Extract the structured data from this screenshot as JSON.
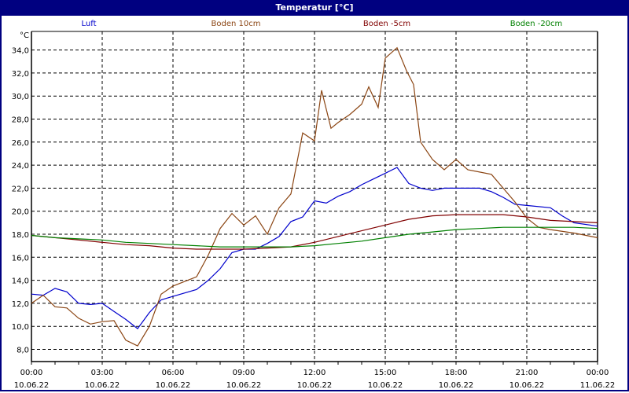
{
  "window": {
    "title": "Temperatur [°C]"
  },
  "chart_data": {
    "type": "line",
    "title": "Temperatur [°C]",
    "ylabel": "°C",
    "xlabel": "",
    "ylim": [
      7.0,
      35.5
    ],
    "yticks": [
      34.0,
      32.0,
      30.0,
      28.0,
      26.0,
      24.0,
      22.0,
      20.0,
      18.0,
      16.0,
      14.0,
      12.0,
      10.0,
      8.0
    ],
    "ytick_labels": [
      "34,0",
      "32,0",
      "30,0",
      "28,0",
      "26,0",
      "24,0",
      "22,0",
      "20,0",
      "18,0",
      "16,0",
      "14,0",
      "12,0",
      "10,0",
      "8,0"
    ],
    "xticks": [
      {
        "time": "00:00",
        "date": "10.06.22"
      },
      {
        "time": "03:00",
        "date": "10.06.22"
      },
      {
        "time": "06:00",
        "date": "10.06.22"
      },
      {
        "time": "09:00",
        "date": "10.06.22"
      },
      {
        "time": "12:00",
        "date": "10.06.22"
      },
      {
        "time": "15:00",
        "date": "10.06.22"
      },
      {
        "time": "18:00",
        "date": "10.06.22"
      },
      {
        "time": "21:00",
        "date": "10.06.22"
      },
      {
        "time": "00:00",
        "date": "11.06.22"
      }
    ],
    "grid": true,
    "legend_position": "top",
    "series": [
      {
        "name": "Luft",
        "color": "#0000cc",
        "x": [
          0,
          0.5,
          1,
          1.5,
          2,
          2.5,
          3,
          3.5,
          4,
          4.5,
          5,
          5.5,
          6,
          7,
          7.5,
          8,
          8.5,
          9,
          9.5,
          10,
          10.5,
          11,
          11.5,
          12,
          12.5,
          13,
          13.5,
          14,
          14.5,
          15,
          15.5,
          16,
          16.5,
          17,
          17.5,
          18,
          19,
          19.5,
          20,
          20.5,
          21,
          22,
          22.5,
          23,
          24
        ],
        "values": [
          12.8,
          12.7,
          13.3,
          13.0,
          12.0,
          11.9,
          12.0,
          11.3,
          10.6,
          9.8,
          11.2,
          12.3,
          12.6,
          13.2,
          14.0,
          15.0,
          16.4,
          16.7,
          16.7,
          17.2,
          17.8,
          19.1,
          19.5,
          20.9,
          20.7,
          21.3,
          21.7,
          22.3,
          22.8,
          23.3,
          23.8,
          22.4,
          22.0,
          21.8,
          22.0,
          22.0,
          22.0,
          21.7,
          21.2,
          20.6,
          20.5,
          20.3,
          19.6,
          19.0,
          18.7
        ]
      },
      {
        "name": "Boden 10cm",
        "color": "#8b4513",
        "x": [
          0,
          0.5,
          1,
          1.5,
          2,
          2.5,
          3,
          3.5,
          4,
          4.5,
          5,
          5.5,
          6,
          7,
          7.5,
          8,
          8.5,
          9,
          9.5,
          10,
          10.5,
          11,
          11.5,
          12,
          12.3,
          12.7,
          13,
          13.5,
          14,
          14.3,
          14.7,
          15,
          15.5,
          15.9,
          16.2,
          16.5,
          17,
          17.5,
          18,
          18.5,
          19,
          19.5,
          20,
          20.5,
          21,
          21.5,
          22,
          23,
          24
        ],
        "values": [
          12.0,
          12.7,
          11.7,
          11.6,
          10.7,
          10.2,
          10.4,
          10.5,
          8.8,
          8.3,
          10.0,
          12.8,
          13.5,
          14.3,
          16.2,
          18.5,
          19.8,
          18.8,
          19.6,
          18.0,
          20.3,
          21.5,
          26.8,
          26.1,
          30.5,
          27.2,
          27.7,
          28.4,
          29.3,
          30.8,
          29.0,
          33.3,
          34.2,
          32.2,
          31.0,
          26.0,
          24.5,
          23.6,
          24.5,
          23.6,
          23.4,
          23.2,
          22.0,
          20.8,
          19.4,
          18.6,
          18.4,
          18.1,
          17.7
        ]
      },
      {
        "name": "Boden -5cm",
        "color": "#800000",
        "x": [
          0,
          1,
          2,
          3,
          4,
          5,
          6,
          7,
          8,
          9,
          10,
          11,
          12,
          13,
          14,
          15,
          16,
          17,
          18,
          19,
          20,
          21,
          22,
          23,
          24
        ],
        "values": [
          17.9,
          17.7,
          17.5,
          17.3,
          17.1,
          17.0,
          16.8,
          16.7,
          16.7,
          16.7,
          16.8,
          16.9,
          17.3,
          17.8,
          18.3,
          18.8,
          19.3,
          19.6,
          19.7,
          19.7,
          19.7,
          19.5,
          19.2,
          19.1,
          19.0
        ]
      },
      {
        "name": "Boden -20cm",
        "color": "#008000",
        "x": [
          0,
          1,
          2,
          3,
          4,
          5,
          6,
          7,
          8,
          9,
          10,
          11,
          12,
          13,
          14,
          15,
          16,
          17,
          18,
          19,
          20,
          21,
          22,
          23,
          24
        ],
        "values": [
          17.9,
          17.7,
          17.6,
          17.5,
          17.3,
          17.2,
          17.1,
          17.0,
          16.9,
          16.9,
          16.9,
          16.9,
          17.0,
          17.2,
          17.4,
          17.7,
          18.0,
          18.2,
          18.4,
          18.5,
          18.6,
          18.6,
          18.6,
          18.6,
          18.5
        ]
      }
    ]
  }
}
